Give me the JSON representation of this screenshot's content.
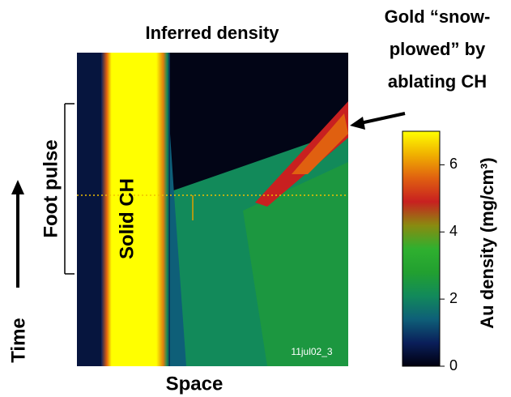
{
  "chart_data": {
    "type": "heatmap",
    "title": "Inferred density",
    "xlabel": "Space",
    "ylabel": "Time",
    "annotations": [
      "Gold “snow-",
      "plowed” by",
      "ablating CH"
    ],
    "bracket_label": "Foot pulse",
    "region_label": "Solid CH",
    "shot_label": "11jul02_3",
    "colorbar": {
      "label": "Au density (mg/cm³)",
      "clim": [
        0,
        7
      ],
      "ticks": [
        0,
        2,
        4,
        6
      ],
      "colormap": [
        "#00000f",
        "#0a1f5a",
        "#0e5f78",
        "#128a5a",
        "#22a030",
        "#2fb02f",
        "#8a8a10",
        "#c82020",
        "#e06010",
        "#f0b000",
        "#ffff00"
      ]
    }
  }
}
